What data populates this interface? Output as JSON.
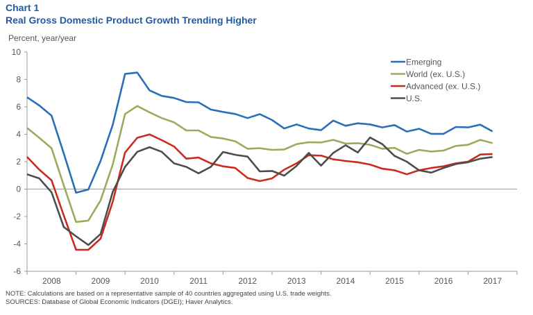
{
  "header": {
    "chart_number": "Chart 1",
    "title": "Real Gross Domestic Product Growth Trending Higher"
  },
  "notes": {
    "note": "NOTE: Calculations are based on a representative  sample of 40 countries aggregated  using U.S. trade weights.",
    "sources": "SOURCES: Database of Global Economic Indicators (DGEI); Haver Analytics."
  },
  "chart_data": {
    "type": "line",
    "title": "Real Gross Domestic Product Growth Trending Higher",
    "ylabel": "Percent, year/year",
    "xlabel": "",
    "ylim": [
      -6,
      10
    ],
    "yticks": [
      -6,
      -4,
      -2,
      0,
      2,
      4,
      6,
      8,
      10
    ],
    "xticks": [
      "2008",
      "2009",
      "2010",
      "2011",
      "2012",
      "2013",
      "2014",
      "2015",
      "2016",
      "2017"
    ],
    "grid": false,
    "legend": "top-right",
    "x": [
      "2008Q1",
      "2008Q2",
      "2008Q3",
      "2008Q4",
      "2009Q1",
      "2009Q2",
      "2009Q3",
      "2009Q4",
      "2010Q1",
      "2010Q2",
      "2010Q3",
      "2010Q4",
      "2011Q1",
      "2011Q2",
      "2011Q3",
      "2011Q4",
      "2012Q1",
      "2012Q2",
      "2012Q3",
      "2012Q4",
      "2013Q1",
      "2013Q2",
      "2013Q3",
      "2013Q4",
      "2014Q1",
      "2014Q2",
      "2014Q3",
      "2014Q4",
      "2015Q1",
      "2015Q2",
      "2015Q3",
      "2015Q4",
      "2016Q1",
      "2016Q2",
      "2016Q3",
      "2016Q4",
      "2017Q1",
      "2017Q2",
      "2017Q3"
    ],
    "series": [
      {
        "name": "Emerging",
        "color": "#2a6ebb",
        "values": [
          6.7,
          6.1,
          5.35,
          2.6,
          -0.27,
          -0.03,
          2.05,
          4.7,
          8.4,
          8.5,
          7.2,
          6.8,
          6.65,
          6.35,
          6.33,
          5.8,
          5.63,
          5.48,
          5.18,
          5.47,
          5.04,
          4.42,
          4.72,
          4.42,
          4.3,
          5.0,
          4.62,
          4.8,
          4.72,
          4.5,
          4.67,
          4.2,
          4.4,
          4.03,
          4.03,
          4.53,
          4.5,
          4.7,
          4.21
        ]
      },
      {
        "name": "World (ex. U.S.)",
        "color": "#9aab5c",
        "values": [
          4.47,
          3.74,
          2.98,
          0.27,
          -2.4,
          -2.3,
          -0.83,
          1.8,
          5.48,
          6.06,
          5.6,
          5.18,
          4.87,
          4.28,
          4.28,
          3.8,
          3.69,
          3.49,
          2.94,
          2.98,
          2.86,
          2.89,
          3.28,
          3.42,
          3.4,
          3.59,
          3.32,
          3.35,
          3.23,
          2.94,
          3.01,
          2.57,
          2.86,
          2.74,
          2.81,
          3.15,
          3.23,
          3.59,
          3.35
        ]
      },
      {
        "name": "Advanced (ex. U.S.)",
        "color": "#cc2a1e",
        "values": [
          2.35,
          1.42,
          0.64,
          -1.93,
          -4.43,
          -4.43,
          -3.62,
          -0.91,
          2.67,
          3.74,
          3.99,
          3.57,
          3.11,
          2.22,
          2.3,
          1.88,
          1.66,
          1.54,
          0.81,
          0.58,
          0.78,
          1.42,
          1.88,
          2.47,
          2.44,
          2.17,
          2.05,
          1.96,
          1.79,
          1.49,
          1.37,
          1.08,
          1.37,
          1.54,
          1.66,
          1.88,
          2.0,
          2.52,
          2.55
        ]
      },
      {
        "name": "U.S.",
        "color": "#4d4d4d",
        "values": [
          1.08,
          0.78,
          -0.24,
          -2.77,
          -3.45,
          -4.08,
          -3.28,
          -0.2,
          1.62,
          2.72,
          3.06,
          2.72,
          1.88,
          1.62,
          1.15,
          1.62,
          2.71,
          2.5,
          2.37,
          1.29,
          1.32,
          0.98,
          1.69,
          2.64,
          1.71,
          2.64,
          3.2,
          2.67,
          3.76,
          3.28,
          2.42,
          2.0,
          1.37,
          1.2,
          1.54,
          1.83,
          1.96,
          2.22,
          2.34
        ]
      }
    ]
  }
}
